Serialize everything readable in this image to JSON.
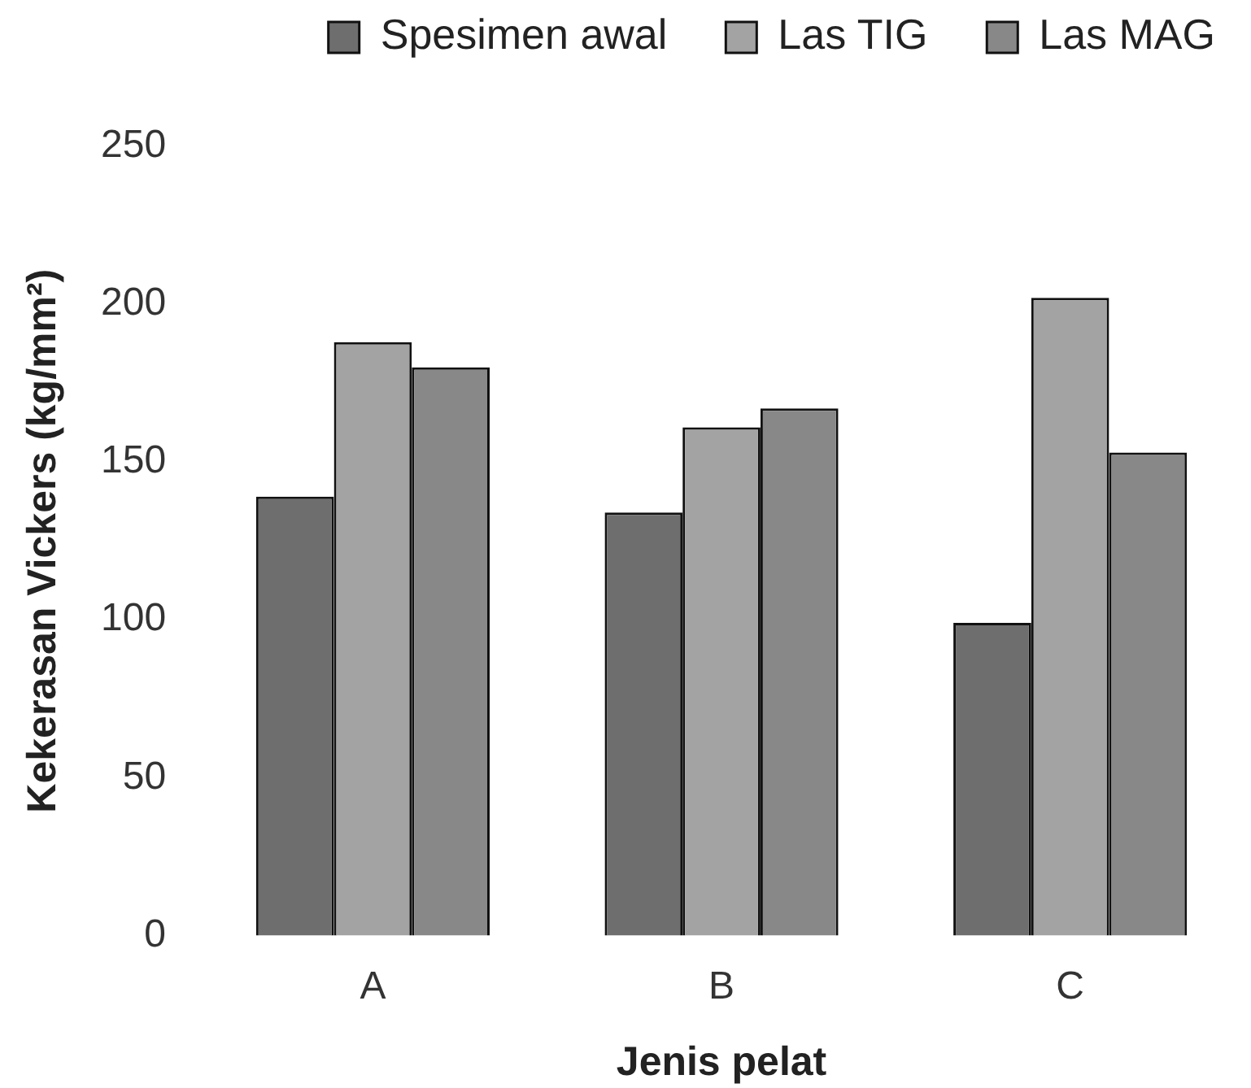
{
  "chart_data": {
    "type": "bar",
    "xlabel": "Jenis pelat",
    "ylabel": "Kekerasan Vickers (kg/mm²)",
    "categories": [
      "A",
      "B",
      "C"
    ],
    "series": [
      {
        "name": "Spesimen awal",
        "color": "#6e6e6e",
        "values": [
          139,
          134,
          99
        ]
      },
      {
        "name": "Las TIG",
        "color": "#a3a3a3",
        "values": [
          188,
          161,
          202
        ]
      },
      {
        "name": "Las MAG",
        "color": "#888888",
        "values": [
          180,
          167,
          153
        ]
      }
    ],
    "ylim": [
      0,
      250
    ],
    "yticks": [
      0,
      50,
      100,
      150,
      200,
      250
    ],
    "legend": "top right"
  }
}
